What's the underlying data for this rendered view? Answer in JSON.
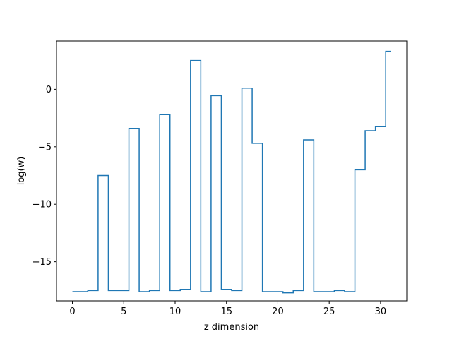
{
  "chart_data": {
    "type": "line",
    "drawstyle": "steps-mid",
    "xlabel": "z dimension",
    "ylabel": "log(w)",
    "xlim": [
      -1.55,
      32.55
    ],
    "ylim": [
      -18.4,
      4.2
    ],
    "xticks": [
      0,
      5,
      10,
      15,
      20,
      25,
      30
    ],
    "yticks": [
      0,
      -5,
      -10,
      -15
    ],
    "ytick_labels": [
      "0",
      "−5",
      "−10",
      "−15"
    ],
    "grid": false,
    "color": "#1f77b4",
    "series": [
      {
        "x": [
          0,
          1,
          2,
          3,
          4,
          5,
          6,
          7,
          8,
          9,
          10,
          11,
          12,
          13,
          14,
          15,
          16,
          17,
          18,
          19,
          20,
          21,
          22,
          23,
          24,
          25,
          26,
          27,
          28,
          29,
          30,
          31
        ],
        "y": [
          -17.6,
          -17.6,
          -17.5,
          -7.5,
          -17.5,
          -17.5,
          -3.4,
          -17.6,
          -17.5,
          -2.2,
          -17.5,
          -17.4,
          2.5,
          -17.6,
          -0.55,
          -17.4,
          -17.5,
          0.1,
          -4.7,
          -17.6,
          -17.6,
          -17.7,
          -17.5,
          -4.4,
          -17.6,
          -17.6,
          -17.5,
          -17.6,
          -7.0,
          -3.6,
          -3.25,
          3.3
        ]
      }
    ]
  }
}
